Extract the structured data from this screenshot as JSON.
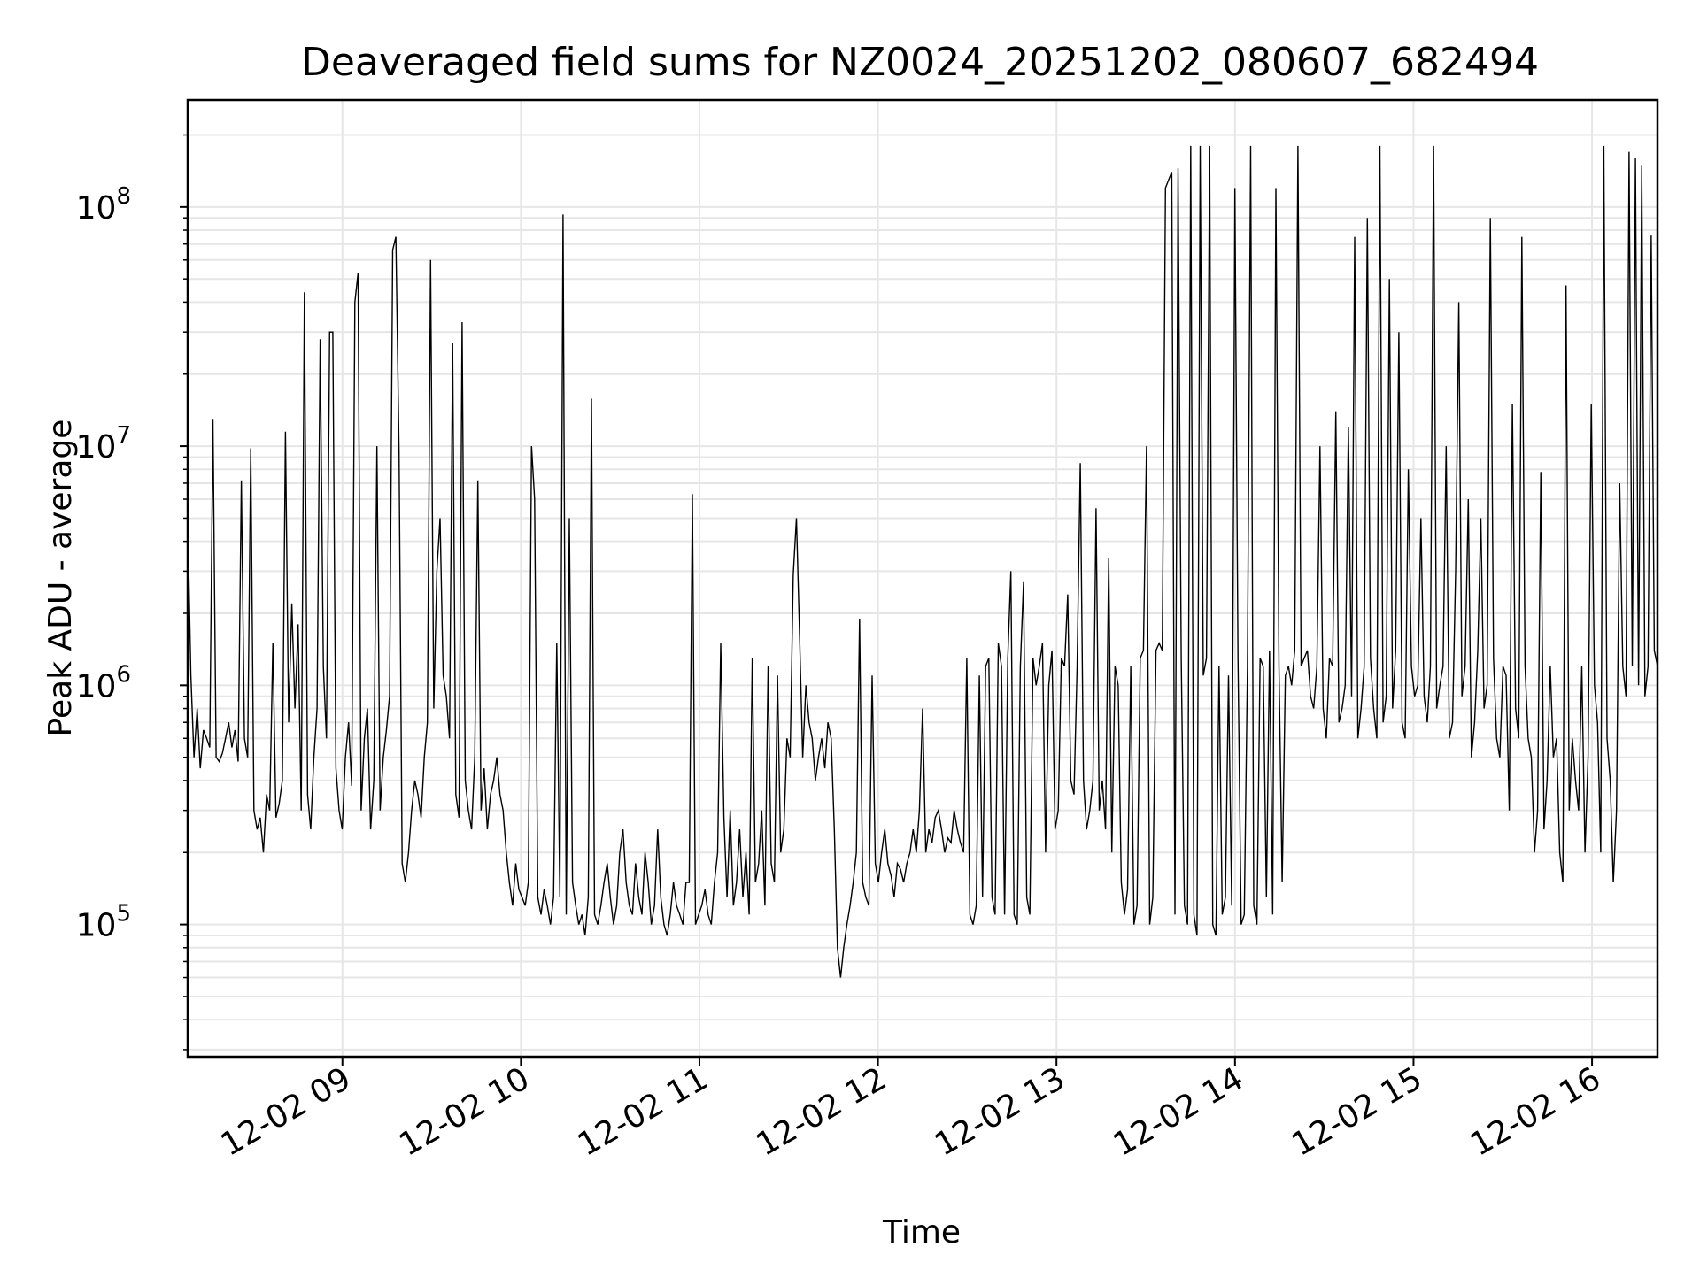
{
  "chart_data": {
    "type": "line",
    "title": "Deaveraged field sums for NZ0024_20251202_080607_682494",
    "xlabel": "Time",
    "ylabel": "Peak ADU - average",
    "x_ticks": [
      "12-02 09",
      "12-02 10",
      "12-02 11",
      "12-02 12",
      "12-02 13",
      "12-02 14",
      "12-02 15",
      "12-02 16"
    ],
    "y_ticks": [
      {
        "value": 100000,
        "label": "10^5"
      },
      {
        "value": 1000000,
        "label": "10^6"
      },
      {
        "value": 10000000,
        "label": "10^7"
      },
      {
        "value": 100000000,
        "label": "10^8"
      }
    ],
    "xlim": [
      "2025-12-02 08:08",
      "2025-12-02 16:22"
    ],
    "ylim": [
      28000,
      280000000
    ],
    "y_scale": "log",
    "grid": true,
    "line_color": "#000000",
    "series": [
      {
        "x_start": "2025-12-02 08:08",
        "x_end": "2025-12-02 16:22",
        "values": [
          5000000,
          1100000,
          500000,
          800000,
          450000,
          650000,
          600000,
          550000,
          13000000,
          500000,
          480000,
          520000,
          600000,
          700000,
          550000,
          650000,
          480000,
          7200000,
          600000,
          500000,
          9800000,
          300000,
          250000,
          280000,
          200000,
          350000,
          300000,
          1500000,
          280000,
          320000,
          400000,
          11500000,
          700000,
          2200000,
          800000,
          1800000,
          300000,
          44000000,
          350000,
          250000,
          500000,
          800000,
          28000000,
          1200000,
          600000,
          30000000,
          30000000,
          450000,
          300000,
          250000,
          500000,
          700000,
          380000,
          40000000,
          53000000,
          300000,
          600000,
          800000,
          250000,
          400000,
          10000000,
          300000,
          500000,
          650000,
          900000,
          66000000,
          75000000,
          9500000,
          180000,
          150000,
          200000,
          300000,
          400000,
          350000,
          280000,
          500000,
          700000,
          60000000,
          800000,
          3000000,
          5000000,
          1100000,
          900000,
          600000,
          27000000,
          350000,
          280000,
          33000000,
          400000,
          300000,
          250000,
          500000,
          7200000,
          300000,
          450000,
          250000,
          350000,
          400000,
          500000,
          350000,
          300000,
          200000,
          150000,
          120000,
          180000,
          140000,
          130000,
          120000,
          150000,
          10000000,
          6000000,
          130000,
          110000,
          140000,
          120000,
          100000,
          130000,
          1500000,
          130000,
          93000000,
          110000,
          5000000,
          150000,
          120000,
          100000,
          110000,
          90000,
          130000,
          15800000,
          110000,
          100000,
          120000,
          150000,
          180000,
          130000,
          100000,
          120000,
          200000,
          250000,
          150000,
          120000,
          110000,
          180000,
          130000,
          110000,
          200000,
          150000,
          100000,
          120000,
          250000,
          130000,
          100000,
          90000,
          110000,
          150000,
          120000,
          110000,
          100000,
          150000,
          150000,
          6300000,
          100000,
          110000,
          120000,
          140000,
          110000,
          100000,
          150000,
          200000,
          1500000,
          280000,
          130000,
          300000,
          120000,
          150000,
          250000,
          130000,
          200000,
          110000,
          1300000,
          150000,
          180000,
          300000,
          120000,
          1200000,
          180000,
          150000,
          1100000,
          200000,
          250000,
          600000,
          500000,
          2900000,
          5000000,
          1600000,
          500000,
          1000000,
          700000,
          600000,
          400000,
          500000,
          600000,
          450000,
          700000,
          600000,
          250000,
          80000,
          60000,
          80000,
          100000,
          120000,
          150000,
          200000,
          1900000,
          150000,
          130000,
          120000,
          1100000,
          180000,
          150000,
          200000,
          250000,
          180000,
          160000,
          130000,
          180000,
          170000,
          150000,
          180000,
          200000,
          250000,
          200000,
          300000,
          800000,
          200000,
          250000,
          220000,
          280000,
          300000,
          250000,
          200000,
          230000,
          220000,
          300000,
          250000,
          220000,
          200000,
          1300000,
          110000,
          100000,
          120000,
          1100000,
          130000,
          1200000,
          1300000,
          130000,
          110000,
          1500000,
          1200000,
          110000,
          1300000,
          3000000,
          110000,
          100000,
          1200000,
          2700000,
          130000,
          110000,
          1300000,
          1000000,
          1200000,
          1500000,
          200000,
          1000000,
          1400000,
          250000,
          300000,
          1300000,
          1200000,
          2400000,
          400000,
          350000,
          1200000,
          8500000,
          400000,
          250000,
          300000,
          400000,
          5500000,
          300000,
          400000,
          250000,
          3400000,
          200000,
          1200000,
          1000000,
          150000,
          110000,
          140000,
          1200000,
          100000,
          120000,
          1300000,
          1400000,
          10000000,
          100000,
          130000,
          1400000,
          1500000,
          1400000,
          120000000,
          130000000,
          140000000,
          110000,
          145000000,
          1300000,
          120000,
          100000,
          180000000,
          110000,
          90000,
          180000000,
          1100000,
          1300000,
          180000000,
          100000,
          90000,
          1200000,
          110000,
          130000,
          1100000,
          120000,
          120000000,
          1300000,
          100000,
          110000,
          1200000,
          180000000,
          120000,
          100000,
          1300000,
          1200000,
          130000,
          1400000,
          110000,
          120000000,
          1200000,
          150000,
          1100000,
          1200000,
          1000000,
          1400000,
          180000000,
          1200000,
          1300000,
          1400000,
          900000,
          800000,
          1200000,
          10000000,
          800000,
          600000,
          1300000,
          1200000,
          14000000,
          700000,
          800000,
          1000000,
          12000000,
          900000,
          75000000,
          600000,
          800000,
          1200000,
          90000000,
          1300000,
          800000,
          600000,
          180000000,
          700000,
          900000,
          50000000,
          800000,
          1400000,
          30000000,
          700000,
          600000,
          8000000,
          1200000,
          900000,
          1000000,
          5000000,
          900000,
          700000,
          1200000,
          180000000,
          800000,
          1000000,
          1200000,
          10000000,
          600000,
          700000,
          3000000,
          40000000,
          900000,
          1200000,
          6000000,
          500000,
          700000,
          1400000,
          5000000,
          800000,
          1000000,
          90000000,
          1300000,
          600000,
          500000,
          1200000,
          1100000,
          300000,
          15000000,
          800000,
          600000,
          75000000,
          1200000,
          600000,
          500000,
          200000,
          300000,
          7800000,
          250000,
          400000,
          1200000,
          500000,
          600000,
          200000,
          150000,
          47000000,
          300000,
          600000,
          400000,
          300000,
          1200000,
          200000,
          500000,
          15000000,
          1000000,
          700000,
          200000,
          180000000,
          600000,
          400000,
          150000,
          300000,
          7000000,
          1200000,
          900000,
          170000000,
          1200000,
          160000000,
          1000000,
          150000000,
          900000,
          1200000,
          76000000,
          1400000,
          1200000
        ]
      }
    ]
  }
}
